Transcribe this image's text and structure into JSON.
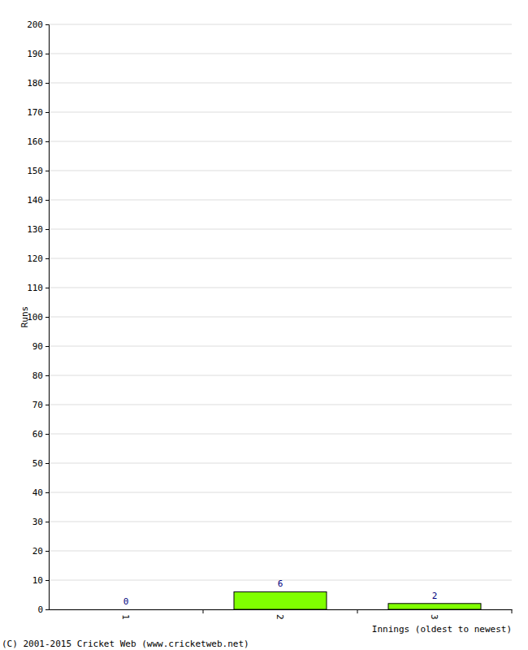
{
  "chart_data": {
    "type": "bar",
    "y_label": "Runs",
    "x_label": "Innings (oldest to newest)",
    "annotations": [
      "(C) 2001-2015 Cricket Web (www.cricketweb.net)"
    ],
    "categories": [
      "1",
      "2",
      "3"
    ],
    "values": [
      0,
      6,
      2
    ],
    "color": "#80ff00",
    "ylim": [
      0,
      200
    ],
    "yticks": [
      0,
      10,
      20,
      30,
      40,
      50,
      60,
      70,
      80,
      90,
      100,
      110,
      120,
      130,
      140,
      150,
      160,
      170,
      180,
      190,
      200
    ],
    "grid": true,
    "data_labels": true
  }
}
